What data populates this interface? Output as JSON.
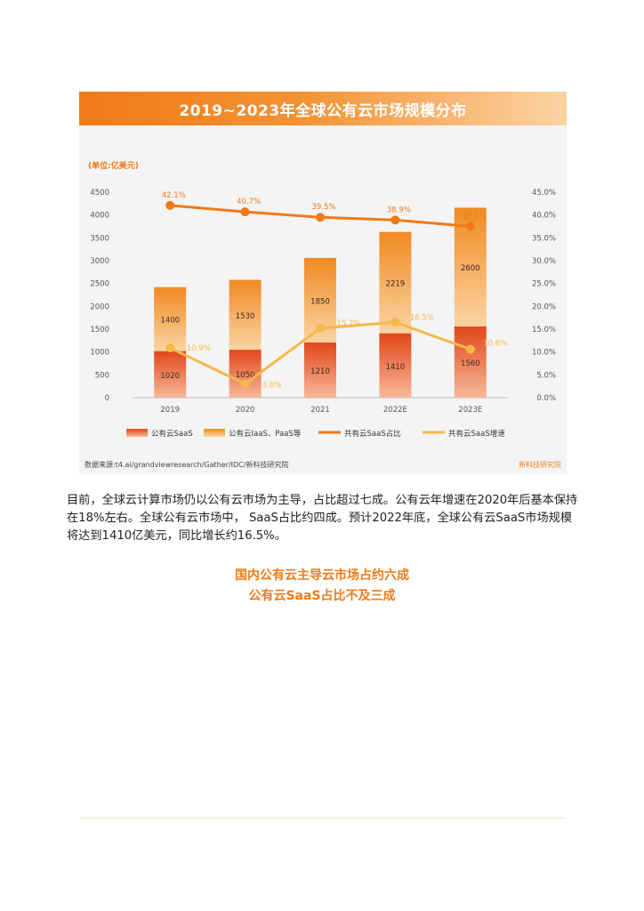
{
  "figure": {
    "banner_title": "2019~2023年全球公有云市场规模分布",
    "source_text": "数据来源:t4.ai/grandviewresearch/Gather/IDC/新科技研究院",
    "brand_text": "新科技研究院"
  },
  "chart_data": {
    "type": "bar",
    "stacked": true,
    "unit_label": "(单位:亿美元)",
    "categories": [
      "2019",
      "2020",
      "2021",
      "2022E",
      "2023E"
    ],
    "series": [
      {
        "name": "公有云SaaS",
        "kind": "bar",
        "axis": "left",
        "values": [
          1020,
          1050,
          1210,
          1410,
          1560
        ],
        "color": "#e8541b"
      },
      {
        "name": "公有云IaaS、PaaS等",
        "kind": "bar",
        "axis": "left",
        "values": [
          1400,
          1530,
          1850,
          2219,
          2600
        ],
        "color": "#f39a35"
      },
      {
        "name": "共有云SaaS占比",
        "kind": "line",
        "axis": "right",
        "values": [
          42.1,
          40.7,
          39.5,
          38.9,
          37.5
        ],
        "labels": [
          "42.1%",
          "40.7%",
          "39.5%",
          "38.9%",
          "37.5%"
        ],
        "color": "#f07a17"
      },
      {
        "name": "共有云SaaS增速",
        "kind": "line",
        "axis": "right",
        "values": [
          10.9,
          3.0,
          15.2,
          16.5,
          10.6
        ],
        "labels": [
          "10.9%",
          "3.0%",
          "15.2%",
          "16.5%",
          "10.6%"
        ],
        "color": "#f6b84a"
      }
    ],
    "ylim_left": [
      0,
      4500
    ],
    "yticks_left": [
      "0",
      "500",
      "1000",
      "1500",
      "2000",
      "2500",
      "3000",
      "3500",
      "4000",
      "4500"
    ],
    "ylim_right": [
      0,
      45
    ],
    "yticks_right": [
      "0.0%",
      "5.0%",
      "10.0%",
      "15.0%",
      "20.0%",
      "25.0%",
      "30.0%",
      "35.0%",
      "40.0%",
      "45.0%"
    ],
    "grid": false,
    "legend_position": "bottom"
  },
  "paragraph": "目前，全球云计算市场仍以公有云市场为主导，占比超过七成。公有云年增速在2020年后基本保持在18%左右。全球公有云市场中， SaaS占比约四成。预计2022年底，全球公有云SaaS市场规模将达到1410亿美元，同比增长约16.5%。",
  "subheadings": [
    "国内公有云主导云市场占约六成",
    "公有云SaaS占比不及三成"
  ]
}
